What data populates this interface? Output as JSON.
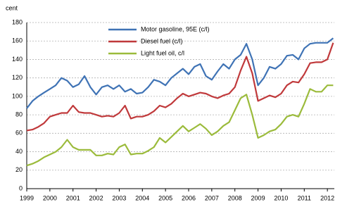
{
  "chart_data": {
    "type": "line",
    "y_label": "cent",
    "x": [
      1999,
      1999.25,
      1999.5,
      1999.75,
      2000,
      2000.25,
      2000.5,
      2000.75,
      2001,
      2001.25,
      2001.5,
      2001.75,
      2002,
      2002.25,
      2002.5,
      2002.75,
      2003,
      2003.25,
      2003.5,
      2003.75,
      2004,
      2004.25,
      2004.5,
      2004.75,
      2005,
      2005.25,
      2005.5,
      2005.75,
      2006,
      2006.25,
      2006.5,
      2006.75,
      2007,
      2007.25,
      2007.5,
      2007.75,
      2008,
      2008.25,
      2008.5,
      2008.75,
      2009,
      2009.25,
      2009.5,
      2009.75,
      2010,
      2010.25,
      2010.5,
      2010.75,
      2011,
      2011.25,
      2011.5,
      2011.75,
      2012,
      2012.25
    ],
    "series": [
      {
        "name": "Motor gasoline, 95E (c/l)",
        "color": "#3f73b5",
        "values": [
          87,
          95,
          100,
          104,
          108,
          112,
          120,
          117,
          110,
          113,
          122,
          110,
          102,
          110,
          112,
          108,
          112,
          105,
          108,
          103,
          104,
          110,
          118,
          116,
          112,
          120,
          125,
          130,
          124,
          132,
          135,
          122,
          118,
          127,
          135,
          130,
          140,
          145,
          157,
          140,
          112,
          120,
          132,
          130,
          135,
          144,
          145,
          140,
          152,
          157,
          158,
          158,
          158,
          163
        ]
      },
      {
        "name": "Diesel fuel (c/l)",
        "color": "#c0393b",
        "values": [
          63,
          64,
          67,
          71,
          78,
          80,
          82,
          82,
          90,
          83,
          82,
          82,
          80,
          78,
          79,
          78,
          82,
          90,
          76,
          78,
          78,
          80,
          84,
          90,
          88,
          92,
          98,
          103,
          100,
          102,
          104,
          103,
          100,
          98,
          101,
          103,
          110,
          128,
          143,
          125,
          95,
          98,
          101,
          99,
          103,
          112,
          116,
          115,
          124,
          136,
          137,
          137,
          140,
          158
        ]
      },
      {
        "name": "Light fuel oil, c/l",
        "color": "#9bbb3b",
        "values": [
          25,
          27,
          30,
          34,
          37,
          40,
          45,
          53,
          45,
          42,
          42,
          42,
          36,
          36,
          38,
          37,
          45,
          48,
          37,
          38,
          38,
          41,
          45,
          55,
          50,
          56,
          62,
          68,
          62,
          66,
          70,
          65,
          58,
          62,
          68,
          72,
          85,
          98,
          102,
          80,
          55,
          58,
          62,
          64,
          70,
          78,
          80,
          78,
          92,
          108,
          105,
          105,
          112,
          112
        ]
      }
    ],
    "xlim": [
      1999,
      2012.3
    ],
    "ylim": [
      0,
      180
    ],
    "xticks": [
      1999,
      2000,
      2001,
      2002,
      2003,
      2004,
      2005,
      2006,
      2007,
      2008,
      2009,
      2010,
      2011,
      2012
    ],
    "yticks": [
      0,
      20,
      40,
      60,
      80,
      100,
      120,
      140,
      160,
      180
    ],
    "grid": true,
    "legend": "top"
  }
}
